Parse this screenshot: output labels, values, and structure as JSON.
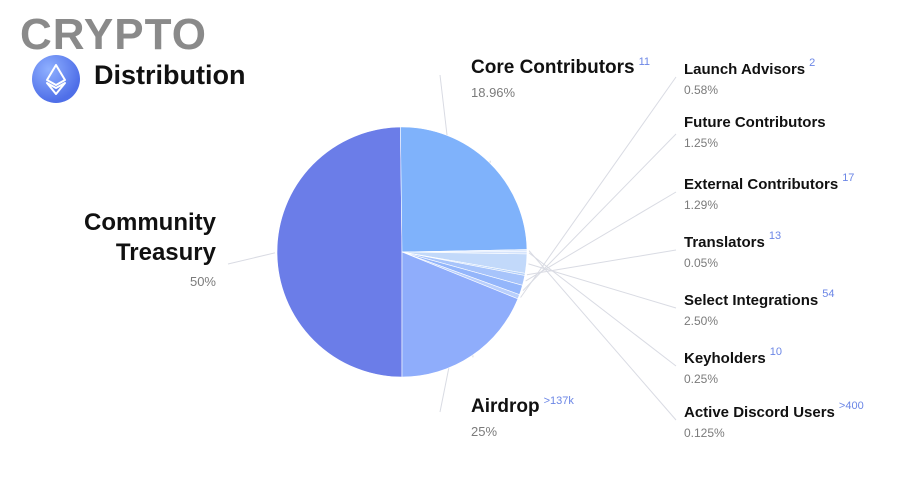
{
  "header": {
    "brand": "CRYPTO",
    "title": "Distribution"
  },
  "chart_data": {
    "type": "pie",
    "title": "Distribution",
    "slices": [
      {
        "name": "Community Treasury",
        "value": 50,
        "label": "50%",
        "count": "",
        "color": "#6b7de8"
      },
      {
        "name": "Airdrop",
        "value": 25,
        "label": "25%",
        "count": ">137k",
        "color": "#7fb2fb"
      },
      {
        "name": "Active Discord Users",
        "value": 0.125,
        "label": "0.125%",
        "count": ">400",
        "color": "#dce8fc"
      },
      {
        "name": "Keyholders",
        "value": 0.25,
        "label": "0.25%",
        "count": "10",
        "color": "#cfe0fb"
      },
      {
        "name": "Select Integrations",
        "value": 2.5,
        "label": "2.50%",
        "count": "54",
        "color": "#c2d9fa"
      },
      {
        "name": "Translators",
        "value": 0.05,
        "label": "0.05%",
        "count": "13",
        "color": "#b6d2f9"
      },
      {
        "name": "External Contributors",
        "value": 1.29,
        "label": "1.29%",
        "count": "17",
        "color": "#a7c4fb"
      },
      {
        "name": "Future Contributors",
        "value": 1.25,
        "label": "1.25%",
        "count": "",
        "color": "#94b6fb"
      },
      {
        "name": "Launch Advisors",
        "value": 0.58,
        "label": "0.58%",
        "count": "2",
        "color": "#b9cffc"
      },
      {
        "name": "Core Contributors",
        "value": 18.96,
        "label": "18.96%",
        "count": "11",
        "color": "#8fadfb"
      }
    ]
  }
}
